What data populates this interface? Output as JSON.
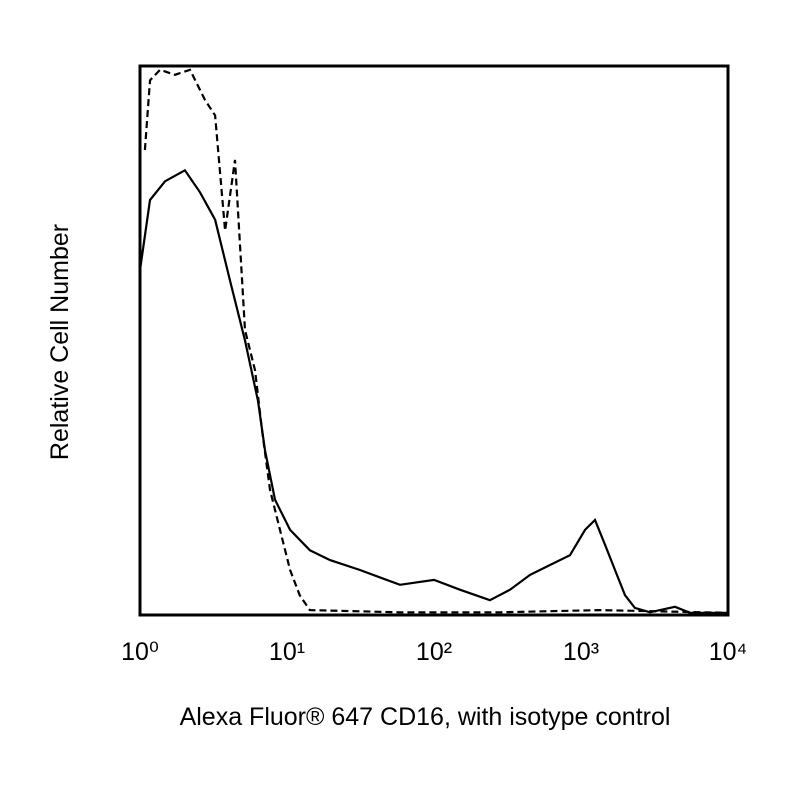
{
  "chart_data": {
    "type": "line",
    "x_label": "Alexa Fluor® 647 CD16, with isotype control",
    "y_label": "Relative Cell Number",
    "log_x": true,
    "xlim": [
      1,
      10000
    ],
    "xticks": [
      {
        "value": 1,
        "label": "10⁰"
      },
      {
        "value": 10,
        "label": "10¹"
      },
      {
        "value": 100,
        "label": "10²"
      },
      {
        "value": 1000,
        "label": "10³"
      },
      {
        "value": 10000,
        "label": "10⁴"
      }
    ],
    "ylim": [
      0,
      100
    ],
    "series": [
      {
        "color": "#000000",
        "line_style": "solid",
        "x": [
          1,
          1.17,
          1.48,
          2.02,
          2.56,
          3.24,
          4.09,
          5.18,
          6.35,
          7.08,
          8.28,
          10.5,
          14.3,
          19.6,
          31.4,
          58.7,
          100,
          150,
          240,
          329,
          450,
          615,
          842,
          1065,
          1245,
          1456,
          1702,
          1991,
          2328,
          2946,
          4357,
          5515,
          10000
        ],
        "values": [
          62.8,
          75.6,
          79,
          81,
          77,
          72,
          61,
          50,
          39,
          30,
          21,
          15.5,
          11.8,
          10,
          8.2,
          5.5,
          6.4,
          4.6,
          2.7,
          4.6,
          7.3,
          9.1,
          10.9,
          15.5,
          17.3,
          12.8,
          8.2,
          3.6,
          1.3,
          0.5,
          1.5,
          0.4,
          0.4
        ]
      },
      {
        "color": "#000000",
        "line_style": "dashed",
        "x": [
          1.08,
          1.17,
          1.37,
          1.73,
          2.19,
          2.77,
          3.24,
          3.79,
          4.43,
          5.18,
          6.06,
          6.76,
          7.66,
          8.96,
          10.5,
          12.2,
          14.3,
          58.7,
          281,
          1347,
          10000
        ],
        "values": [
          84.7,
          97.4,
          99.3,
          98.4,
          99.3,
          93.8,
          91,
          70,
          82.9,
          51.9,
          44.6,
          33.7,
          22.8,
          15.5,
          8.2,
          3.6,
          0.9,
          0.5,
          0.5,
          0.9,
          0.4
        ]
      }
    ]
  }
}
